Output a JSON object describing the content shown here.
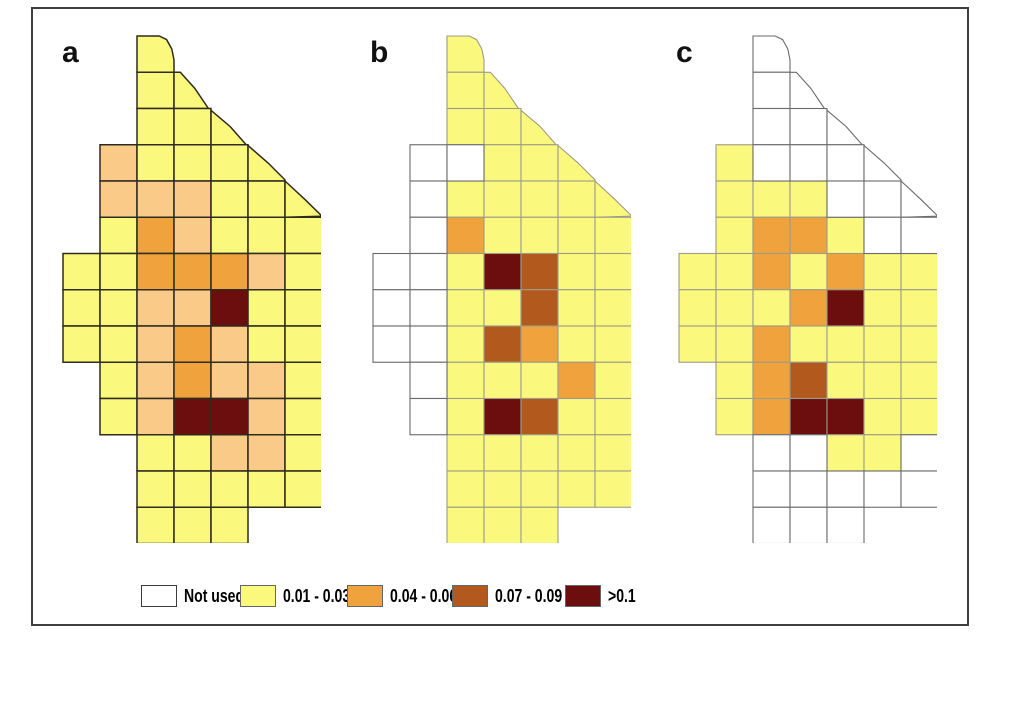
{
  "figure": {
    "frame": {
      "border_color": "#3f3f3f"
    },
    "cell_colors": {
      "W": "#FFFFFF",
      "Y": "#FBF97D",
      "P": "#FACB88",
      "O": "#F0A23D",
      "B": "#B2591E",
      "M": "#6C0E0D"
    },
    "strokes": {
      "panel_a": "#2e2b1f",
      "panel_bc_colored": "#9c9c88",
      "panel_bc_white": "#6a6a6a"
    },
    "legend": {
      "items": [
        {
          "label": "Not used",
          "color": "#FFFFFF"
        },
        {
          "label": "0.01 - 0.03",
          "color": "#FBF97D"
        },
        {
          "label": "0.04 - 0.06",
          "color": "#F0A23D"
        },
        {
          "label": "0.07 - 0.09",
          "color": "#B2591E"
        },
        {
          "label": ">0.1",
          "color": "#6C0E0D"
        }
      ]
    }
  },
  "chart_data": {
    "type": "heatmap",
    "title": "",
    "grid_size": {
      "rows": 14,
      "cols": 7
    },
    "legend_bins": [
      "Not used",
      "0.01 - 0.03",
      "0.04 - 0.06",
      "0.07 - 0.09",
      ">0.1"
    ],
    "cell_code_meaning": {
      ".": "outside study area boundary",
      "W": "Not used (white)",
      "Y": "0.01 - 0.03 (yellow)",
      "P": "light orange shade used in panel a (~0.04-0.06, pale)",
      "O": "0.04 - 0.06 (orange)",
      "B": "0.07 - 0.09 (sienna brown)",
      "M": ">0.1 (dark red)"
    },
    "panels": [
      {
        "label": "a",
        "grid_rows": [
          "..Y....",
          "..YY...",
          "..YYY..",
          ".PYYYY.",
          ".PPPYYY",
          ".YOPYYY",
          "YYOOOPY",
          "YYPPMYY",
          "YYPOPYY",
          ".YPOPPY",
          ".YPMMPY",
          "..YYPPY",
          "..YYYYY",
          "..YYY.."
        ]
      },
      {
        "label": "b",
        "grid_rows": [
          "..Y....",
          "..YY...",
          "..YYY..",
          ".WWYYY.",
          ".WYYYYY",
          ".WOYYYY",
          "WWYMBYY",
          "WWYYBYY",
          "WWYBOYY",
          ".WYYYOY",
          ".WYMBYY",
          "..YYYYY",
          "..YYYYY",
          "..YYY.."
        ]
      },
      {
        "label": "c",
        "grid_rows": [
          "..W....",
          "..WW...",
          "..WWW..",
          ".YWWWW.",
          ".YYYWWW",
          ".YOOYWW",
          "YYOYOYY",
          "YYYOMYY",
          "YYOYYYY",
          ".YOBYYY",
          ".YOMMYY",
          "..WWYYW",
          "..WWWWW",
          "..WWW.."
        ]
      }
    ]
  }
}
